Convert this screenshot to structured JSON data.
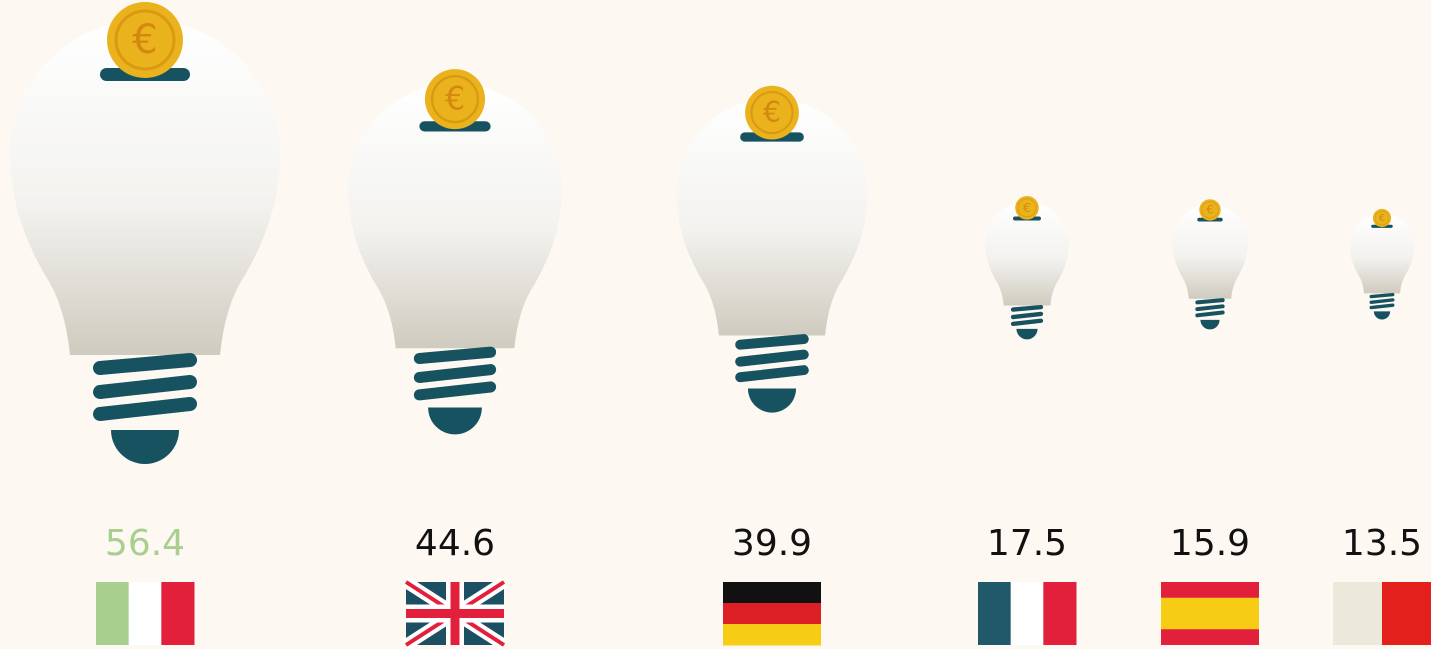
{
  "chart_data": {
    "type": "bulb",
    "categories": [
      null,
      null,
      null,
      null,
      null,
      null
    ],
    "values": [
      56.4,
      44.6,
      39.9,
      17.5,
      15.9,
      13.5
    ],
    "label_colors": [
      "#a8cf8e",
      "#111111",
      "#111111",
      "#111111",
      "#111111",
      "#111111"
    ],
    "coin_symbol": "€"
  }
}
